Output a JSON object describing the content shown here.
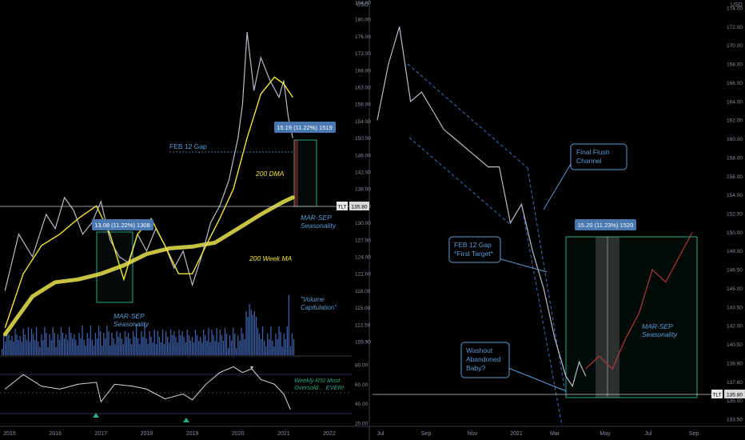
{
  "chart_data": [
    {
      "type": "line",
      "panel": "left",
      "xlabel": "",
      "ylabel": "",
      "currency": "USD",
      "x_ticks": [
        "2015",
        "2016",
        "2017",
        "2018",
        "2019",
        "2020",
        "2021",
        "2022"
      ],
      "y_ticks": [
        109.9,
        112.5,
        115.0,
        118.0,
        121.0,
        124.0,
        127.0,
        130.0,
        134.0,
        138.0,
        142.0,
        146.0,
        150.0,
        154.0,
        158.0,
        163.0,
        168.0,
        172.0,
        176.0,
        180.0,
        184.0
      ],
      "price_series": {
        "name": "",
        "x": [
          2014.9,
          2015.2,
          2015.5,
          2015.8,
          2016.0,
          2016.2,
          2016.4,
          2016.6,
          2016.8,
          2017.0,
          2017.2,
          2017.4,
          2017.6,
          2017.8,
          2018.0,
          2018.2,
          2018.4,
          2018.6,
          2018.8,
          2019.0,
          2019.2,
          2019.4,
          2019.6,
          2019.8,
          2020.0,
          2020.1,
          2020.2,
          2020.35,
          2020.5,
          2020.7,
          2020.9,
          2021.0,
          2021.1,
          2021.2
        ],
        "y": [
          118,
          128,
          124,
          132,
          129,
          136,
          133,
          128,
          130,
          135,
          127,
          124,
          123,
          128,
          125,
          129,
          126,
          122,
          125,
          119,
          124,
          130,
          134,
          140,
          150,
          158,
          177,
          162,
          171,
          165,
          160,
          165,
          155,
          150
        ]
      },
      "dma_200": {
        "name": "200 DMA",
        "x": [
          2014.9,
          2015.3,
          2015.7,
          2016.1,
          2016.5,
          2016.9,
          2017.2,
          2017.5,
          2017.8,
          2018.1,
          2018.4,
          2018.7,
          2019.0,
          2019.3,
          2019.6,
          2019.9,
          2020.2,
          2020.5,
          2020.8,
          2021.0,
          2021.2
        ],
        "y": [
          112,
          121,
          126,
          128,
          131,
          134,
          128,
          120,
          128,
          131,
          126,
          121,
          121,
          126,
          131,
          138,
          150,
          161,
          166,
          164,
          160
        ]
      },
      "wma_200": {
        "name": "200 Week MA",
        "x": [
          2014.9,
          2015.5,
          2016.0,
          2016.5,
          2017.0,
          2017.5,
          2018.0,
          2018.5,
          2019.0,
          2019.5,
          2020.0,
          2020.5,
          2021.0,
          2021.2
        ],
        "y": [
          111,
          117,
          119.5,
          120,
          121,
          122.5,
          124.5,
          125.5,
          125.8,
          126.5,
          129,
          132,
          135,
          136
        ]
      },
      "rsi": {
        "y_ticks": [
          20.0,
          40.0,
          60.0,
          80.0
        ],
        "x": [
          2014.9,
          2015.3,
          2015.7,
          2016.1,
          2016.5,
          2016.9,
          2017.0,
          2017.3,
          2017.7,
          2018.0,
          2018.4,
          2018.8,
          2019.0,
          2019.3,
          2019.6,
          2019.9,
          2020.1,
          2020.3,
          2020.5,
          2020.8,
          2021.0,
          2021.15
        ],
        "y": [
          55,
          70,
          58,
          55,
          60,
          62,
          42,
          60,
          58,
          55,
          45,
          50,
          44,
          60,
          72,
          78,
          72,
          76,
          65,
          60,
          50,
          34
        ]
      },
      "annotations": {
        "feb12_gap": "FEB 12 Gap",
        "dma_label": "200 DMA",
        "wma_label": "200 Week MA",
        "box1_label": "13.08 (11.22%) 1308",
        "box2_label": "15.19 (11.22%) 1519",
        "seasonality_1_line1": "MAR-SEP",
        "seasonality_1_line2": "Seasonality",
        "seasonality_2_line1": "MAR-SEP",
        "seasonality_2_line2": "Seasonality",
        "volume_line1": "\"Volume",
        "volume_line2": "Capitulation\"",
        "rsi_line1": "Weekly RSI Most",
        "rsi_line2": "Oversold… EVER!",
        "tlt_tag": "TLT",
        "price_tag": "135.80"
      }
    },
    {
      "type": "line",
      "panel": "right",
      "xlabel": "",
      "ylabel": "",
      "currency": "USD",
      "x_ticks": [
        "Jul",
        "Sep",
        "Nov",
        "2021",
        "Mar",
        "May",
        "Jul",
        "Sep"
      ],
      "y_ticks": [
        133.5,
        135.0,
        137.6,
        138.9,
        140.5,
        142.0,
        143.5,
        145.0,
        146.5,
        148.0,
        150.0,
        152.0,
        154.0,
        156.0,
        158.0,
        160.0,
        162.0,
        164.0,
        166.0,
        168.0,
        170.0,
        172.0,
        174.0
      ],
      "price_series": {
        "name": "",
        "x": [
          0,
          5,
          10,
          15,
          20,
          25,
          30,
          35,
          40,
          45,
          50,
          55,
          60,
          65,
          70,
          75,
          80,
          85,
          88,
          91,
          94
        ],
        "y": [
          162,
          168,
          172,
          164,
          165,
          163,
          161,
          160,
          159,
          158,
          157,
          157,
          151,
          153,
          148,
          145,
          141,
          138,
          137,
          139,
          138
        ]
      },
      "projection": {
        "name": "",
        "x": [
          94,
          100,
          106,
          112,
          118,
          124,
          130,
          136,
          142
        ],
        "y": [
          138.5,
          139.5,
          138.5,
          141,
          143,
          146.5,
          145.5,
          147.5,
          150
        ]
      },
      "annotations": {
        "final_flush_line1": "Final Flush",
        "final_flush_line2": "Channel",
        "feb12_line1": "FEB 12 Gap",
        "feb12_line2": "*First Target*",
        "washout_line1": "Washout",
        "washout_line2": "Abandoned",
        "washout_line3": "Baby?",
        "box_label": "15.20 (11.23%) 1520",
        "seasonality_line1": "MAR-SEP",
        "seasonality_line2": "Seasonality",
        "tlt_tag": "TLT",
        "price_tag": "135.80"
      }
    }
  ],
  "colors": {
    "background": "#000000",
    "price": "#b8bcc6",
    "dma": "#f2e23a",
    "wma": "#dcd84a",
    "volume": "#3d5fa8",
    "rsi_line": "#d8d8d8",
    "rsi_over": "#c23a3a",
    "annotation_text": "#5b9bd5",
    "teal": "#2aa88a",
    "box_fill": "#4a78b0",
    "axis_text": "#8a8f9c",
    "projection": "#b03a3a"
  }
}
